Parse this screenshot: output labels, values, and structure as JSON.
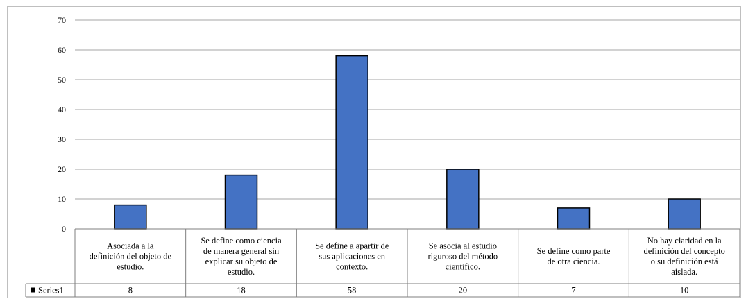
{
  "chart_data": {
    "type": "bar",
    "categories": [
      "Asociada a la definición del objeto de estudio.",
      "Se define como ciencia de manera general sin explicar su objeto de estudio.",
      "Se define a apartir de sus aplicaciones en contexto.",
      "Se asocia al estudio riguroso del método científico.",
      "Se define como parte de otra ciencia.",
      "No hay claridad en la definición del concepto o su definición está aislada."
    ],
    "category_lines": [
      [
        "Asociada a la",
        "definición del objeto de",
        "estudio."
      ],
      [
        "Se define como ciencia",
        "de manera general sin",
        "explicar su objeto de",
        "estudio."
      ],
      [
        "Se define a apartir de",
        "sus aplicaciones en",
        "contexto."
      ],
      [
        "Se asocia al estudio",
        "riguroso del método",
        "científico."
      ],
      [
        "Se define como parte",
        "de otra ciencia."
      ],
      [
        "No hay claridad en la",
        "definición del concepto",
        "o su definición está",
        "aislada."
      ]
    ],
    "series": [
      {
        "name": "Series1",
        "values": [
          8,
          18,
          58,
          20,
          7,
          10
        ],
        "color": "#4472c4"
      }
    ],
    "ylim": [
      0,
      70
    ],
    "yticks": [
      0,
      10,
      20,
      30,
      40,
      50,
      60,
      70
    ],
    "grid": true,
    "legend": "data-table-left",
    "colors": {
      "bar": "#4472c4",
      "bar_edge": "#000000",
      "grid": "#a6a6a6",
      "table_border": "#7f7f7f",
      "frame": "#bfbfbf"
    }
  }
}
